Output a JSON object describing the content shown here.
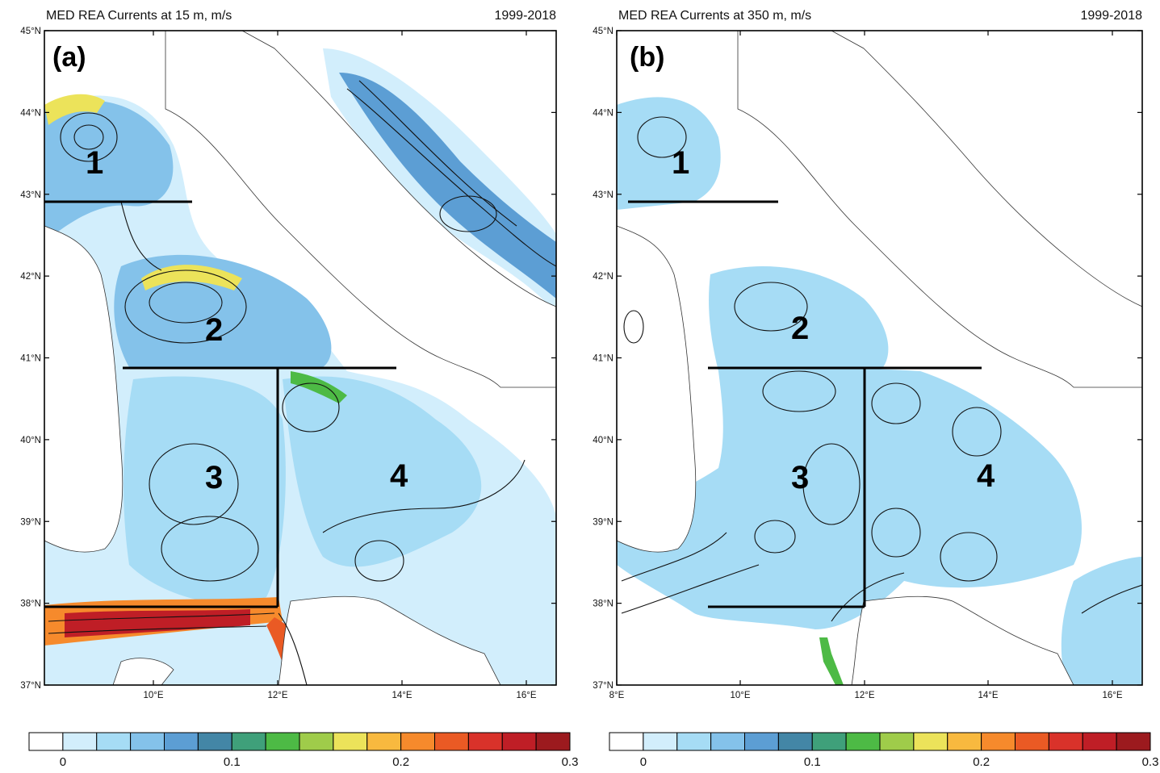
{
  "colorbar_colors": [
    "#ffffff",
    "#d2eefc",
    "#a6dcf5",
    "#84c2ea",
    "#5c9ed4",
    "#4386a6",
    "#3fa07a",
    "#4dba45",
    "#9fcc4a",
    "#ece35a",
    "#f8b93f",
    "#f68a2c",
    "#ea5a24",
    "#d9322a",
    "#bf1e26",
    "#9c1a1e"
  ],
  "panels": [
    {
      "id": "a",
      "title_left": "MED REA Currents at 15 m, m/s",
      "title_right": "1999-2018",
      "panel_label": "(a)",
      "lat_labels": [
        "45°N",
        "44°N",
        "43°N",
        "42°N",
        "41°N",
        "40°N",
        "39°N",
        "38°N",
        "37°N"
      ],
      "lon_labels": [
        "10°E",
        "12°E",
        "14°E",
        "16°E"
      ],
      "region_labels": [
        "1",
        "2",
        "3",
        "4"
      ],
      "colorbar_labels": [
        "0",
        "0.1",
        "0.2",
        "0.3"
      ]
    },
    {
      "id": "b",
      "title_left": "MED REA Currents at 350 m, m/s",
      "title_right": "1999-2018",
      "panel_label": "(b)",
      "lat_labels": [
        "45°N",
        "44°N",
        "43°N",
        "42°N",
        "41°N",
        "40°N",
        "39°N",
        "38°N",
        "37°N"
      ],
      "lon_labels": [
        "8°E",
        "10°E",
        "12°E",
        "14°E",
        "16°E"
      ],
      "region_labels": [
        "1",
        "2",
        "3",
        "4"
      ],
      "colorbar_labels": [
        "0",
        "0.1",
        "0.2",
        "0.3"
      ]
    }
  ]
}
